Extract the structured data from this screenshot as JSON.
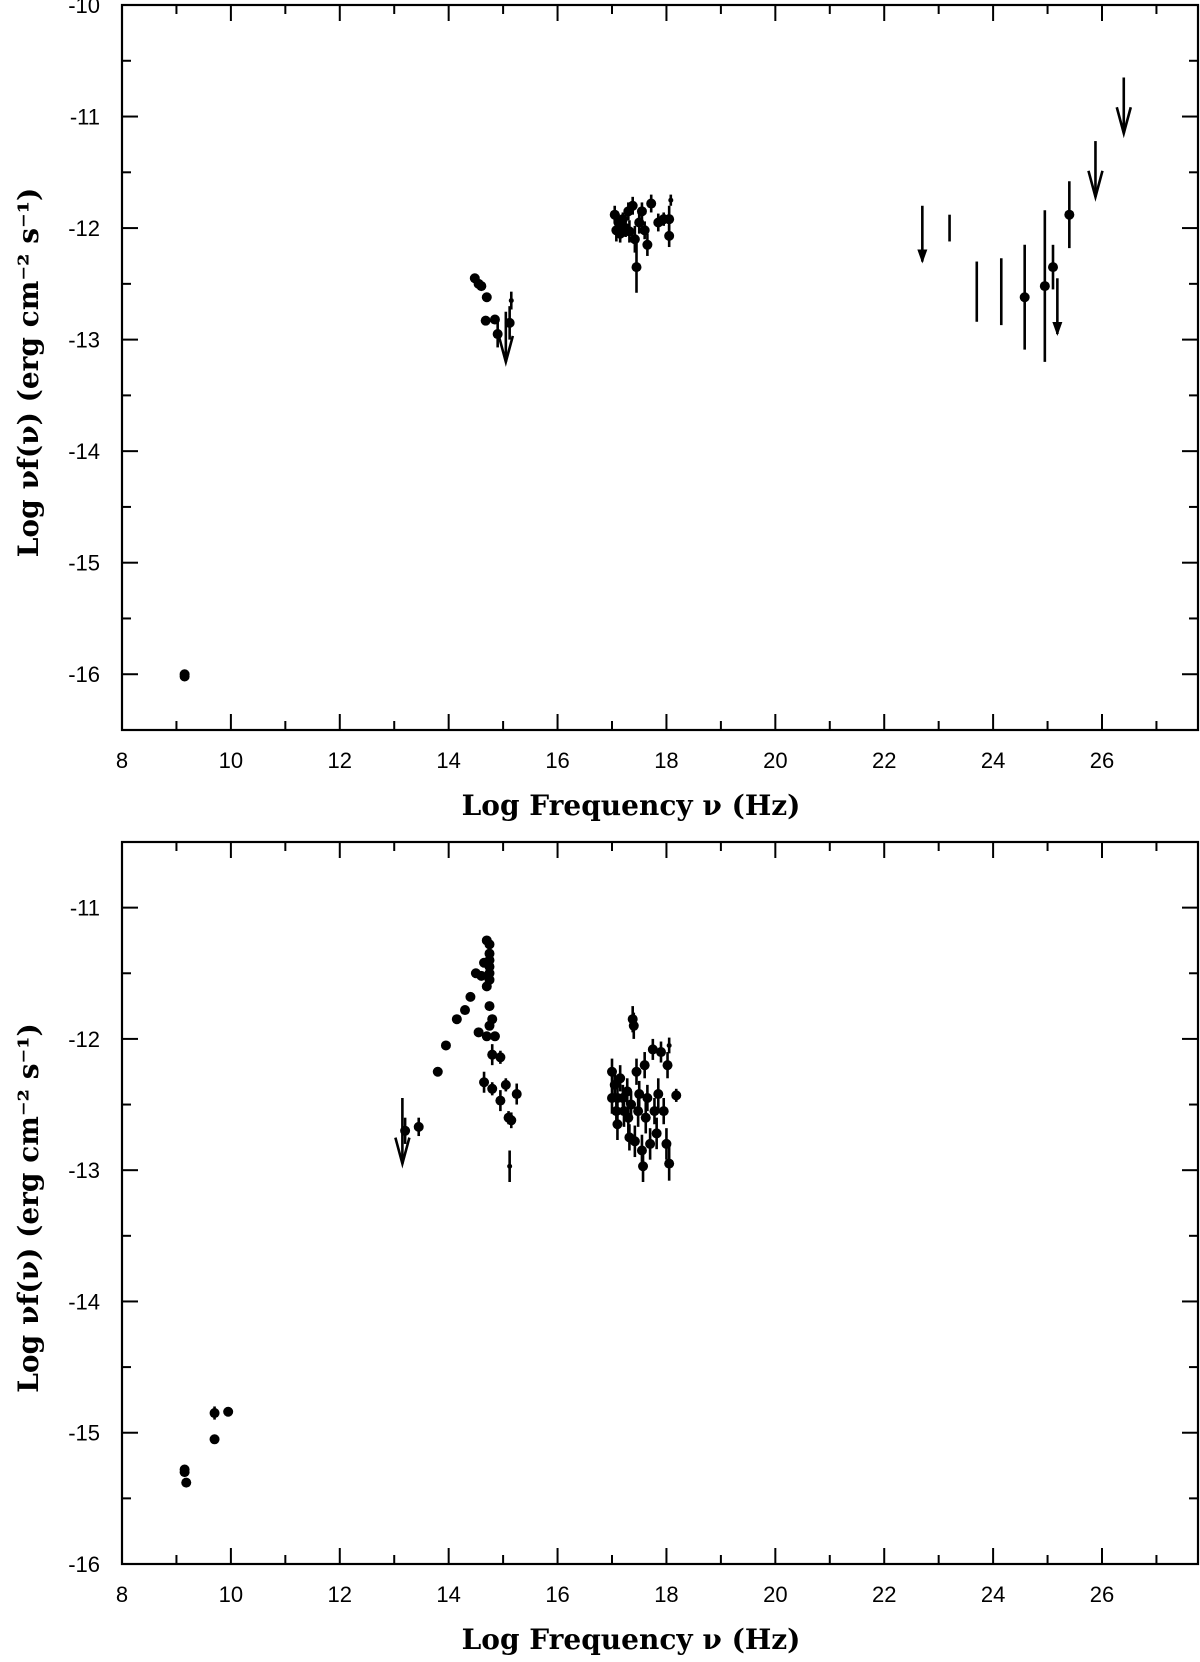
{
  "chart_data": [
    {
      "type": "scatter",
      "xlabel": "Log Frequency ν (Hz)",
      "ylabel": "Log νf(ν) (erg cm⁻² s⁻¹)",
      "xlim": [
        8,
        27.8
      ],
      "ylim": [
        -16.5,
        -10
      ],
      "xticks": [
        "8",
        "10",
        "12",
        "14",
        "16",
        "18",
        "20",
        "22",
        "24",
        "26"
      ],
      "yticks": [
        "-10",
        "-11",
        "-12",
        "-13",
        "-14",
        "-15",
        "-16"
      ],
      "points": [
        {
          "x": 9.15,
          "y": -16.0
        },
        {
          "x": 9.15,
          "y": -16.02
        },
        {
          "x": 14.48,
          "y": -12.45
        },
        {
          "x": 14.55,
          "y": -12.5
        },
        {
          "x": 14.6,
          "y": -12.52
        },
        {
          "x": 14.7,
          "y": -12.62
        },
        {
          "x": 14.68,
          "y": -12.83
        },
        {
          "x": 14.85,
          "y": -12.82
        },
        {
          "x": 14.9,
          "y": -12.95,
          "err": 0.12
        },
        {
          "x": 15.12,
          "y": -12.85,
          "err": 0.15
        },
        {
          "x": 15.15,
          "y": -12.65,
          "err": 0.08,
          "size": "small"
        },
        {
          "x": 17.05,
          "y": -11.88,
          "err": 0.08
        },
        {
          "x": 17.08,
          "y": -12.02,
          "err": 0.1
        },
        {
          "x": 17.12,
          "y": -11.95,
          "err": 0.08
        },
        {
          "x": 17.15,
          "y": -12.05,
          "err": 0.08
        },
        {
          "x": 17.2,
          "y": -11.92,
          "err": 0.06
        },
        {
          "x": 17.25,
          "y": -12.0,
          "err": 0.08
        },
        {
          "x": 17.3,
          "y": -11.85,
          "err": 0.08
        },
        {
          "x": 17.32,
          "y": -12.03,
          "err": 0.1
        },
        {
          "x": 17.38,
          "y": -11.8,
          "err": 0.08
        },
        {
          "x": 17.42,
          "y": -12.1,
          "err": 0.12
        },
        {
          "x": 17.45,
          "y": -12.35,
          "err": 0.23
        },
        {
          "x": 17.5,
          "y": -11.95,
          "err": 0.1
        },
        {
          "x": 17.55,
          "y": -11.85,
          "err": 0.08
        },
        {
          "x": 17.6,
          "y": -12.02,
          "err": 0.08
        },
        {
          "x": 17.65,
          "y": -12.15,
          "err": 0.1
        },
        {
          "x": 17.72,
          "y": -11.78,
          "err": 0.08
        },
        {
          "x": 17.85,
          "y": -11.95,
          "err": 0.08
        },
        {
          "x": 17.95,
          "y": -11.92,
          "err": 0.06
        },
        {
          "x": 18.05,
          "y": -12.07,
          "err": 0.1
        },
        {
          "x": 18.05,
          "y": -11.92,
          "err": 0.12
        },
        {
          "x": 18.08,
          "y": -11.75,
          "err": 0.05,
          "size": "small"
        },
        {
          "x": 23.2,
          "y": -12.0,
          "err": 0.12,
          "size": "none"
        },
        {
          "x": 23.7,
          "y": -12.57,
          "err": 0.27,
          "size": "none"
        },
        {
          "x": 24.15,
          "y": -12.57,
          "err": 0.3,
          "size": "none"
        },
        {
          "x": 24.58,
          "y": -12.62,
          "err": 0.47
        },
        {
          "x": 24.95,
          "y": -12.52,
          "err": 0.68
        },
        {
          "x": 25.1,
          "y": -12.35,
          "err": 0.2
        },
        {
          "x": 25.4,
          "y": -11.88,
          "err": 0.3
        }
      ],
      "upper_limits": [
        {
          "x": 15.05,
          "y": -12.75,
          "length": 0.45,
          "style": "open"
        },
        {
          "x": 22.7,
          "y": -11.8,
          "length": 0.5,
          "style": "filled"
        },
        {
          "x": 25.18,
          "y": -12.45,
          "length": 0.5,
          "style": "filled"
        },
        {
          "x": 25.88,
          "y": -11.22,
          "length": 0.5,
          "style": "open"
        },
        {
          "x": 26.4,
          "y": -10.65,
          "length": 0.5,
          "style": "open"
        }
      ]
    },
    {
      "type": "scatter",
      "xlabel": "Log Frequency ν (Hz)",
      "ylabel": "Log νf(ν) (erg cm⁻² s⁻¹)",
      "xlim": [
        8,
        27.8
      ],
      "ylim": [
        -16,
        -10.5
      ],
      "xticks": [
        "8",
        "10",
        "12",
        "14",
        "16",
        "18",
        "20",
        "22",
        "24",
        "26"
      ],
      "yticks": [
        "-11",
        "-12",
        "-13",
        "-14",
        "-15",
        "-16"
      ],
      "points": [
        {
          "x": 9.15,
          "y": -15.28
        },
        {
          "x": 9.15,
          "y": -15.3
        },
        {
          "x": 9.18,
          "y": -15.38
        },
        {
          "x": 9.7,
          "y": -14.85,
          "err": 0.05
        },
        {
          "x": 9.7,
          "y": -15.05
        },
        {
          "x": 9.95,
          "y": -14.84
        },
        {
          "x": 13.2,
          "y": -12.7,
          "err": 0.1
        },
        {
          "x": 13.45,
          "y": -12.67,
          "err": 0.07
        },
        {
          "x": 13.8,
          "y": -12.25
        },
        {
          "x": 13.95,
          "y": -12.05
        },
        {
          "x": 14.15,
          "y": -11.85
        },
        {
          "x": 14.3,
          "y": -11.78
        },
        {
          "x": 14.4,
          "y": -11.68
        },
        {
          "x": 14.5,
          "y": -11.5
        },
        {
          "x": 14.55,
          "y": -11.95
        },
        {
          "x": 14.6,
          "y": -11.52
        },
        {
          "x": 14.65,
          "y": -11.42
        },
        {
          "x": 14.7,
          "y": -11.25
        },
        {
          "x": 14.75,
          "y": -11.28
        },
        {
          "x": 14.7,
          "y": -11.6
        },
        {
          "x": 14.75,
          "y": -11.75
        },
        {
          "x": 14.75,
          "y": -11.9
        },
        {
          "x": 14.7,
          "y": -11.98
        },
        {
          "x": 14.8,
          "y": -11.85
        },
        {
          "x": 14.85,
          "y": -11.98
        },
        {
          "x": 14.65,
          "y": -12.33,
          "err": 0.08
        },
        {
          "x": 14.8,
          "y": -12.38,
          "err": 0.05
        },
        {
          "x": 14.75,
          "y": -11.35
        },
        {
          "x": 14.75,
          "y": -11.4
        },
        {
          "x": 14.75,
          "y": -11.45
        },
        {
          "x": 14.75,
          "y": -11.5
        },
        {
          "x": 14.75,
          "y": -11.55
        },
        {
          "x": 14.8,
          "y": -12.12,
          "err": 0.08
        },
        {
          "x": 14.95,
          "y": -12.14,
          "err": 0.05
        },
        {
          "x": 14.95,
          "y": -12.47,
          "err": 0.08
        },
        {
          "x": 15.05,
          "y": -12.35,
          "err": 0.05
        },
        {
          "x": 15.1,
          "y": -12.6,
          "err": 0.05
        },
        {
          "x": 15.15,
          "y": -12.62,
          "err": 0.06
        },
        {
          "x": 15.25,
          "y": -12.42,
          "err": 0.08
        },
        {
          "x": 15.12,
          "y": -12.97,
          "err": 0.12,
          "size": "small"
        },
        {
          "x": 17.0,
          "y": -12.25,
          "err": 0.1
        },
        {
          "x": 17.0,
          "y": -12.45,
          "err": 0.12
        },
        {
          "x": 17.05,
          "y": -12.35,
          "err": 0.1
        },
        {
          "x": 17.08,
          "y": -12.55,
          "err": 0.1
        },
        {
          "x": 17.1,
          "y": -12.65,
          "err": 0.12
        },
        {
          "x": 17.15,
          "y": -12.3,
          "err": 0.1
        },
        {
          "x": 17.2,
          "y": -12.45,
          "err": 0.1
        },
        {
          "x": 17.22,
          "y": -12.55,
          "err": 0.12
        },
        {
          "x": 17.28,
          "y": -12.4,
          "err": 0.1
        },
        {
          "x": 17.3,
          "y": -12.6,
          "err": 0.12
        },
        {
          "x": 17.35,
          "y": -12.5,
          "err": 0.1
        },
        {
          "x": 17.38,
          "y": -11.85,
          "err": 0.1
        },
        {
          "x": 17.4,
          "y": -11.9,
          "err": 0.1
        },
        {
          "x": 17.42,
          "y": -12.78,
          "err": 0.12
        },
        {
          "x": 17.45,
          "y": -12.25,
          "err": 0.1
        },
        {
          "x": 17.48,
          "y": -12.55,
          "err": 0.12
        },
        {
          "x": 17.5,
          "y": -12.42,
          "err": 0.1
        },
        {
          "x": 17.55,
          "y": -12.85,
          "err": 0.12
        },
        {
          "x": 17.57,
          "y": -12.97,
          "err": 0.12
        },
        {
          "x": 17.6,
          "y": -12.2,
          "err": 0.1
        },
        {
          "x": 17.62,
          "y": -12.6,
          "err": 0.12
        },
        {
          "x": 17.65,
          "y": -12.45,
          "err": 0.1
        },
        {
          "x": 17.7,
          "y": -12.8,
          "err": 0.12
        },
        {
          "x": 17.75,
          "y": -12.08,
          "err": 0.08
        },
        {
          "x": 17.78,
          "y": -12.55,
          "err": 0.1
        },
        {
          "x": 17.82,
          "y": -12.72,
          "err": 0.12
        },
        {
          "x": 17.85,
          "y": -12.42,
          "err": 0.12
        },
        {
          "x": 17.9,
          "y": -12.1,
          "err": 0.08
        },
        {
          "x": 17.95,
          "y": -12.55,
          "err": 0.1
        },
        {
          "x": 18.0,
          "y": -12.8,
          "err": 0.12
        },
        {
          "x": 18.02,
          "y": -12.2,
          "err": 0.1
        },
        {
          "x": 18.05,
          "y": -12.95,
          "err": 0.13
        },
        {
          "x": 18.18,
          "y": -12.43,
          "err": 0.05
        },
        {
          "x": 18.05,
          "y": -12.05,
          "err": 0.06,
          "size": "small"
        },
        {
          "x": 17.32,
          "y": -12.75,
          "err": 0.1
        },
        {
          "x": 17.1,
          "y": -12.45,
          "err": 0.08
        }
      ],
      "upper_limits": [
        {
          "x": 13.15,
          "y": -12.45,
          "length": 0.5,
          "style": "open"
        }
      ]
    }
  ]
}
